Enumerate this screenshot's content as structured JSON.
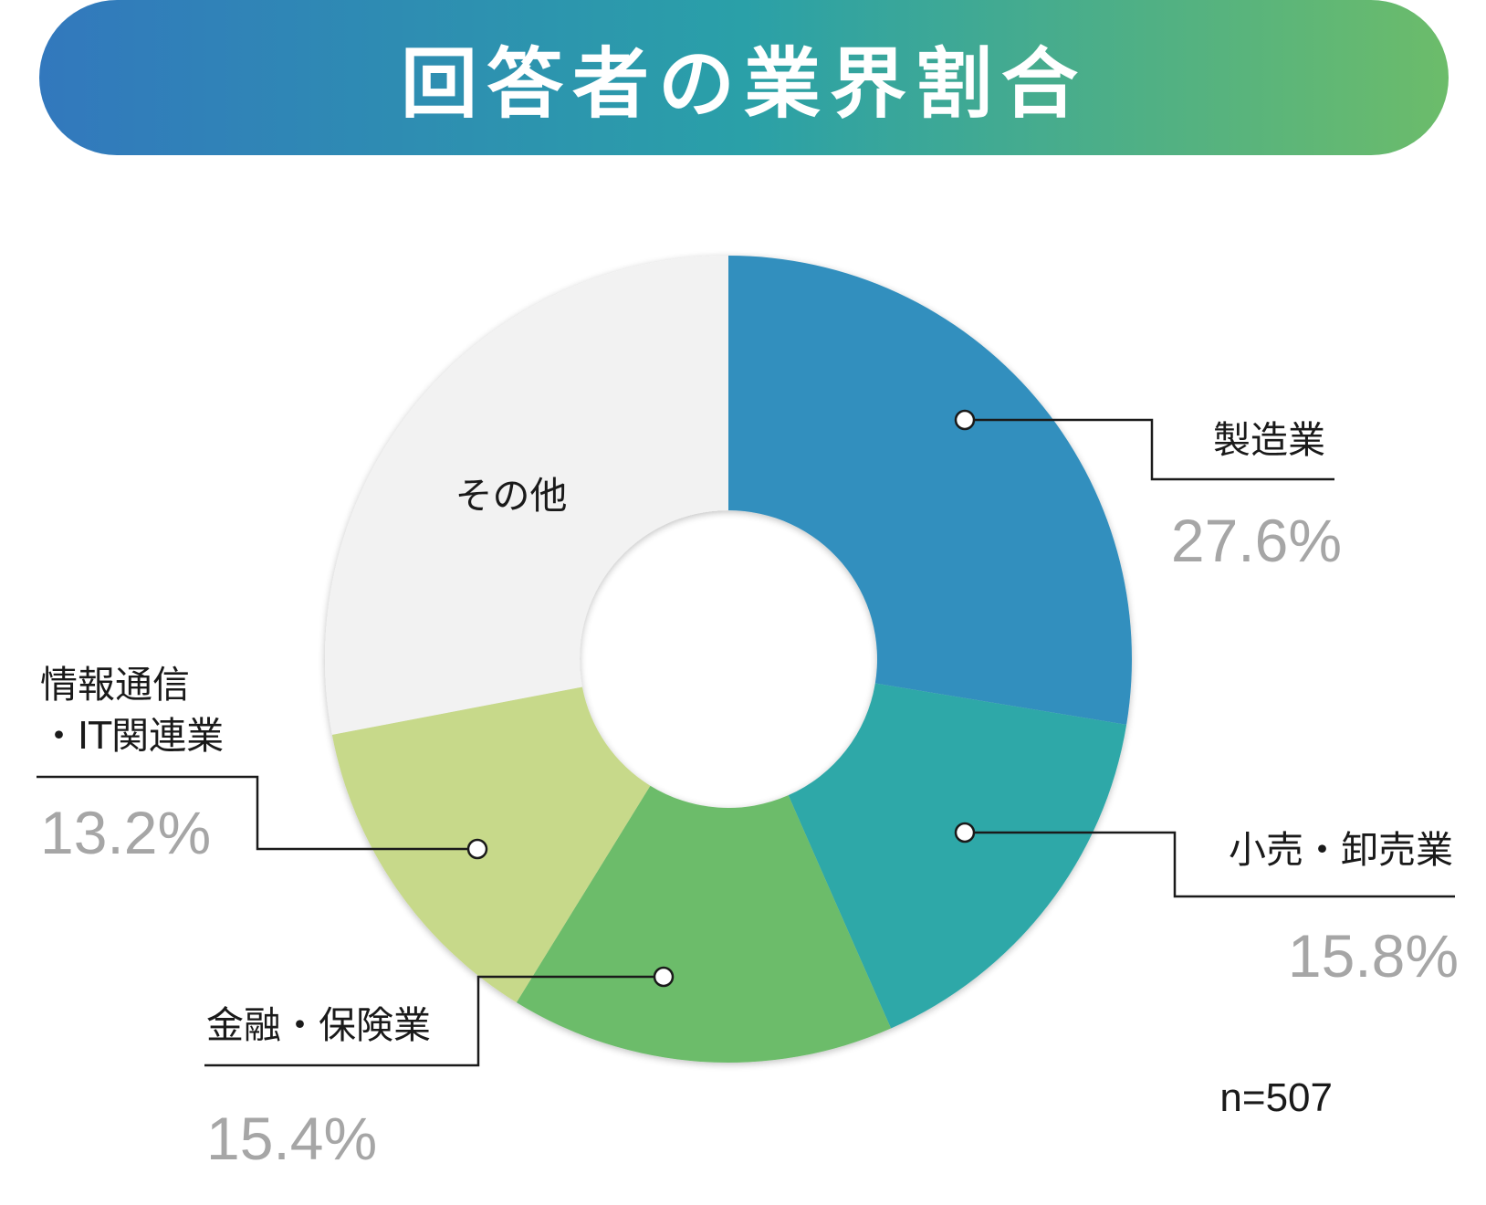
{
  "chart_data": {
    "type": "pie",
    "title": "回答者の業界割合",
    "note": "n=507",
    "categories": [
      "製造業",
      "小売・卸売業",
      "金融・保険業",
      "情報通信・IT関連業",
      "その他"
    ],
    "values": [
      27.6,
      15.8,
      15.4,
      13.2,
      28.0
    ],
    "value_labels": [
      "27.6%",
      "15.8%",
      "15.4%",
      "13.2%",
      ""
    ],
    "colors": [
      "#338fbe",
      "#2da8a8",
      "#6cbc6a",
      "#c7d98a",
      "#f2f2f2"
    ],
    "donut": true,
    "start": "12 o'clock",
    "direction": "clockwise"
  }
}
